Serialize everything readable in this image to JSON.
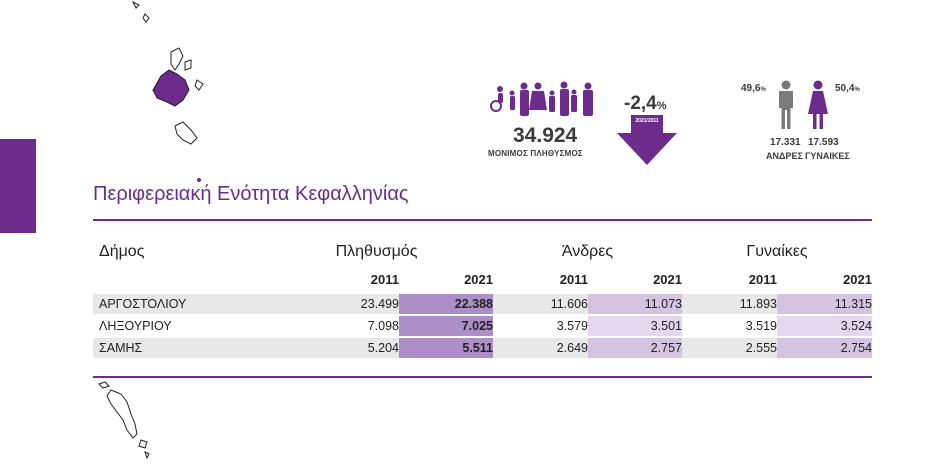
{
  "title": "Περιφερειακή Ενότητα Κεφαλληνίας",
  "summary": {
    "population": "34.924",
    "population_label": "ΜΟΝΙΜΟΣ ΠΛΗΘΥΣΜΟΣ",
    "change": "-2,4",
    "change_unit": "%",
    "change_period": "2021/2011",
    "men_pct": "49,6",
    "women_pct": "50,4",
    "pct_unit": "%",
    "men_count": "17.331",
    "women_count": "17.593",
    "men_label": "ΑΝΔΡΕΣ",
    "women_label": "ΓΥΝΑΙΚΕΣ"
  },
  "table": {
    "col_municipality": "Δήμος",
    "groups": [
      "Πληθυσμός",
      "Άνδρες",
      "Γυναίκες"
    ],
    "years": [
      "2011",
      "2021"
    ],
    "rows": [
      {
        "name": "ΑΡΓΟΣΤΟΛΙΟΥ",
        "pop_2011": "23.499",
        "pop_2021": "22.388",
        "men_2011": "11.606",
        "men_2021": "11.073",
        "women_2011": "11.893",
        "women_2021": "11.315"
      },
      {
        "name": "ΛΗΞΟΥΡΙΟΥ",
        "pop_2011": "7.098",
        "pop_2021": "7.025",
        "men_2011": "3.579",
        "men_2021": "3.501",
        "women_2011": "3.519",
        "women_2021": "3.524"
      },
      {
        "name": "ΣΑΜΗΣ",
        "pop_2011": "5.204",
        "pop_2021": "5.511",
        "men_2011": "2.649",
        "men_2021": "2.757",
        "women_2011": "2.555",
        "women_2021": "2.754"
      }
    ]
  },
  "colors": {
    "accent": "#6d2c8c",
    "highlight": "#ad8ec7",
    "light": "#d3c4e2",
    "grey": "#e8e8e8"
  },
  "icons": [
    "map-ionian-islands-icon",
    "family-population-icon",
    "down-arrow-icon",
    "man-icon",
    "woman-icon",
    "map-corfu-icon"
  ]
}
